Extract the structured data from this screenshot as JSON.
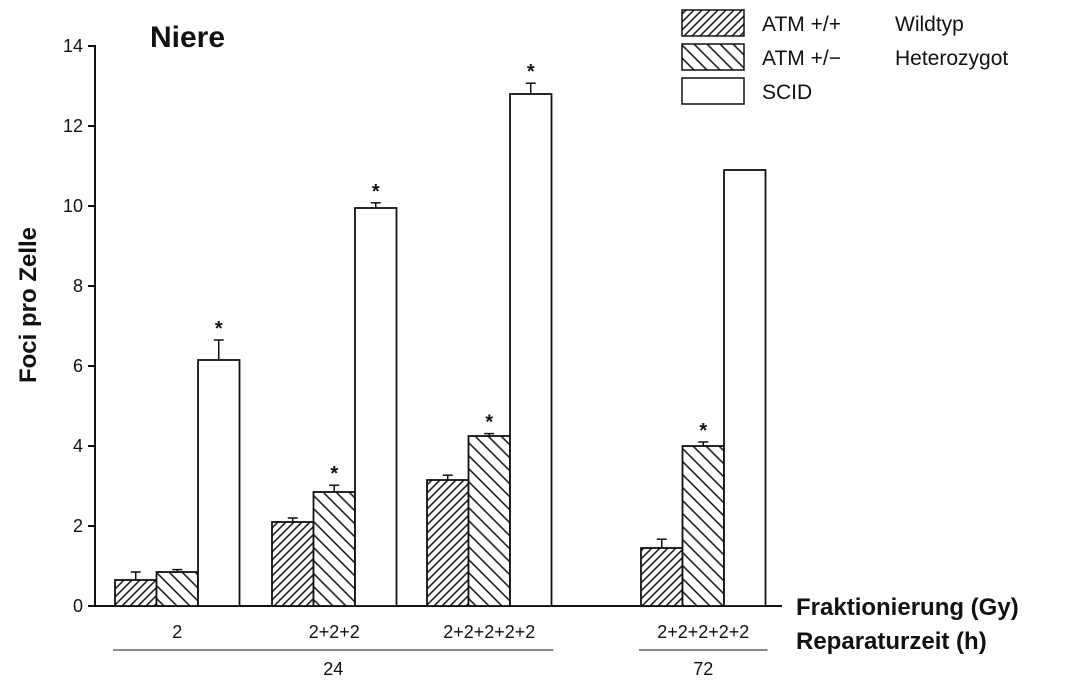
{
  "chart_data": {
    "type": "bar",
    "title": "Niere",
    "ylabel": "Foci pro Zelle",
    "ylim": [
      0,
      14
    ],
    "yticks": [
      "0",
      "2",
      "4",
      "6",
      "8",
      "10",
      "12",
      "14"
    ],
    "categories": [
      "2",
      "2+2+2",
      "2+2+2+2+2",
      "2+2+2+2+2"
    ],
    "x_row1_label": "Fraktionierung (Gy)",
    "x_row2_label": "Reparaturzeit (h)",
    "repair_groups": [
      {
        "label": "24",
        "categories": [
          0,
          1,
          2
        ]
      },
      {
        "label": "72",
        "categories": [
          3
        ]
      }
    ],
    "series": [
      {
        "name": "ATM +/+",
        "legend_desc": "Wildtyp",
        "pattern": "dense-hatch",
        "values": [
          0.65,
          2.1,
          3.15,
          1.45
        ],
        "errors": [
          0.2,
          0.1,
          0.12,
          0.22
        ],
        "significant": [
          false,
          false,
          false,
          false
        ]
      },
      {
        "name": "ATM +/−",
        "legend_desc": "Heterozygot",
        "pattern": "sparse-hatch",
        "values": [
          0.85,
          2.85,
          4.25,
          4.0
        ],
        "errors": [
          0.06,
          0.17,
          0.06,
          0.1
        ],
        "significant": [
          false,
          true,
          true,
          true
        ]
      },
      {
        "name": "SCID",
        "legend_desc": "",
        "pattern": "none",
        "values": [
          6.15,
          9.95,
          12.8,
          10.9
        ],
        "errors": [
          0.5,
          0.13,
          0.27,
          0.0
        ],
        "significant": [
          true,
          true,
          true,
          false
        ]
      }
    ],
    "significance_marker": "*",
    "legend_position": "top-right",
    "grid": false
  }
}
